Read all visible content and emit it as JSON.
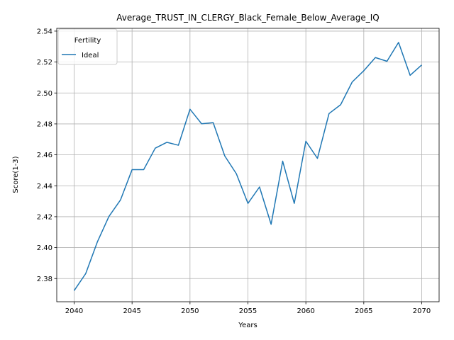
{
  "chart_data": {
    "type": "line",
    "title": "Average_TRUST_IN_CLERGY_Black_Female_Below_Average_IQ",
    "xlabel": "Years",
    "ylabel": "Score(1-3)",
    "xlim": [
      2038.5,
      2071.5
    ],
    "ylim": [
      2.365,
      2.5418
    ],
    "x_ticks": [
      2040,
      2045,
      2050,
      2055,
      2060,
      2065,
      2070
    ],
    "x_tick_labels": [
      "2040",
      "2045",
      "2050",
      "2055",
      "2060",
      "2065",
      "2070"
    ],
    "y_ticks": [
      2.38,
      2.4,
      2.42,
      2.44,
      2.46,
      2.48,
      2.5,
      2.52,
      2.54
    ],
    "y_tick_labels": [
      "2.38",
      "2.40",
      "2.42",
      "2.44",
      "2.46",
      "2.48",
      "2.50",
      "2.52",
      "2.54"
    ],
    "grid": true,
    "legend": {
      "title": "Fertility",
      "placement": "top-left"
    },
    "series": [
      {
        "name": "Ideal",
        "color": "#1f77b4",
        "x": [
          2040,
          2041,
          2042,
          2043,
          2044,
          2045,
          2046,
          2047,
          2048,
          2049,
          2050,
          2051,
          2052,
          2053,
          2054,
          2055,
          2056,
          2057,
          2058,
          2059,
          2060,
          2061,
          2062,
          2063,
          2064,
          2065,
          2066,
          2067,
          2068,
          2069,
          2070
        ],
        "values": [
          2.3722,
          2.3832,
          2.4036,
          2.4201,
          2.4308,
          2.4504,
          2.4504,
          2.4643,
          2.4681,
          2.4662,
          2.4895,
          2.4801,
          2.4808,
          2.4593,
          2.4478,
          2.4286,
          2.4392,
          2.4151,
          2.4559,
          2.4286,
          2.4688,
          2.4577,
          2.4867,
          2.4924,
          2.5071,
          2.5144,
          2.5229,
          2.5205,
          2.5327,
          2.5114,
          2.5181
        ]
      }
    ]
  }
}
